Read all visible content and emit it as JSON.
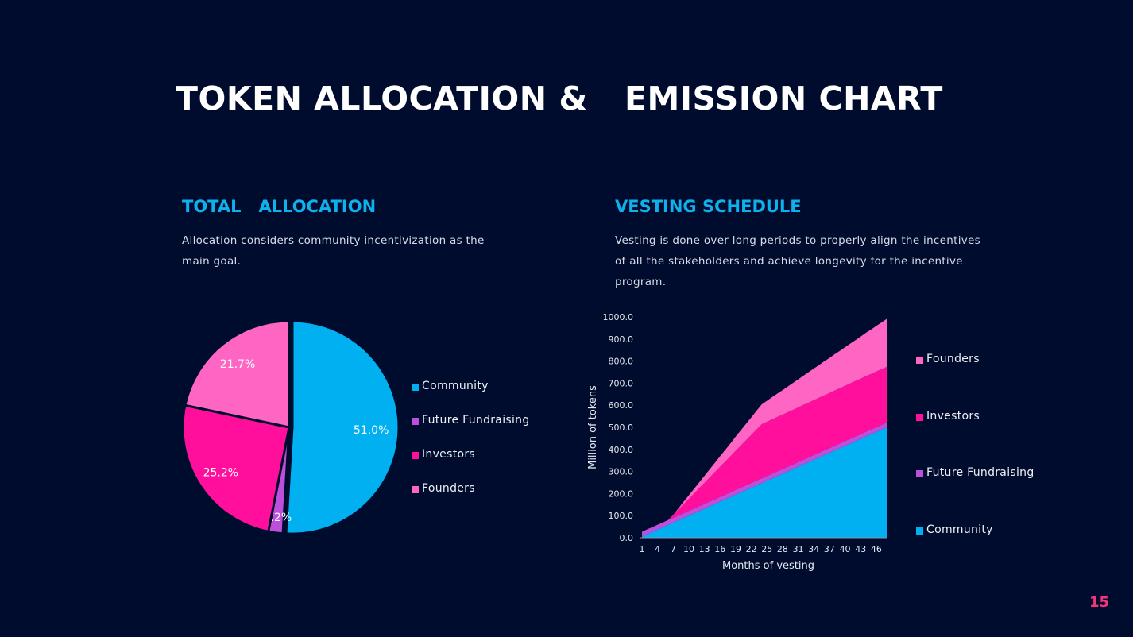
{
  "title_left": "TOKEN ALLOCATION &",
  "title_right": "EMISSION CHART",
  "left": {
    "heading": "TOTAL   ALLOCATION",
    "description": "Allocation considers community incentivization as the main goal."
  },
  "right": {
    "heading": "VESTING SCHEDULE",
    "description": "Vesting is done over long periods to properly align the incentives of all the stakeholders and achieve longevity for the incentive program."
  },
  "page_number": "15",
  "colors": {
    "background": "#000c2e",
    "community": "#00b0f0",
    "future_fundraising": "#bd4fdc",
    "investors": "#ff0f9b",
    "founders": "#ff66c4",
    "heading": "#0fb0ee",
    "page_number": "#f5337a"
  },
  "chart_data": [
    {
      "type": "pie",
      "start": "top",
      "direction": "clockwise",
      "categories": [
        "Community",
        "Future Fundraising",
        "Investors",
        "Founders"
      ],
      "values": [
        51.0,
        2.2,
        25.2,
        21.7
      ],
      "labels": [
        "51.0%",
        "2.2%",
        "25.2%",
        "21.7%"
      ],
      "legend": [
        "Community",
        "Future Fundraising",
        "Investors",
        "Founders"
      ],
      "legend_placement": "right"
    },
    {
      "type": "area",
      "stacked": true,
      "xlabel": "Months of vesting",
      "ylabel": "Million of tokens",
      "ylim": [
        0,
        1000
      ],
      "yticks": [
        "0.0",
        "100.0",
        "200.0",
        "300.0",
        "400.0",
        "500.0",
        "600.0",
        "700.0",
        "800.0",
        "900.0",
        "1000.0"
      ],
      "xticks": [
        "1",
        "4",
        "7",
        "10",
        "13",
        "16",
        "19",
        "22",
        "25",
        "28",
        "31",
        "34",
        "37",
        "40",
        "43",
        "46"
      ],
      "x": [
        1,
        2,
        3,
        4,
        5,
        6,
        7,
        8,
        9,
        10,
        11,
        12,
        13,
        14,
        15,
        16,
        17,
        18,
        19,
        20,
        21,
        22,
        23,
        24,
        25,
        26,
        27,
        28,
        29,
        30,
        31,
        32,
        33,
        34,
        35,
        36,
        37,
        38,
        39,
        40,
        41,
        42,
        43,
        44,
        45,
        46,
        47,
        48
      ],
      "grid": false,
      "legend": [
        "Founders",
        "Investors",
        "Future Fundraising",
        "Community"
      ],
      "legend_placement": "right",
      "series": [
        {
          "name": "Community",
          "values": [
            5,
            16,
            26,
            37,
            47,
            58,
            68,
            79,
            89,
            100,
            110,
            121,
            131,
            142,
            152,
            163,
            173,
            184,
            195,
            205,
            216,
            226,
            237,
            247,
            258,
            268,
            279,
            289,
            300,
            310,
            321,
            332,
            342,
            353,
            363,
            374,
            384,
            395,
            405,
            416,
            426,
            437,
            447,
            458,
            468,
            479,
            489,
            500
          ]
        },
        {
          "name": "Future Fundraising",
          "values": [
            22,
            22,
            22,
            22,
            22,
            22,
            22,
            22,
            22,
            22,
            22,
            22,
            22,
            22,
            22,
            22,
            22,
            22,
            22,
            22,
            22,
            22,
            22,
            22,
            22,
            22,
            22,
            22,
            22,
            22,
            22,
            22,
            22,
            22,
            22,
            22,
            22,
            22,
            22,
            22,
            22,
            22,
            22,
            22,
            22,
            22,
            22,
            22
          ]
        },
        {
          "name": "Investors",
          "values": [
            0,
            0,
            0,
            0,
            0,
            0,
            14,
            27,
            41,
            54,
            68,
            82,
            95,
            109,
            123,
            136,
            150,
            163,
            177,
            191,
            204,
            218,
            231,
            245,
            245,
            246,
            246,
            246,
            247,
            247,
            247,
            248,
            248,
            248,
            249,
            249,
            249,
            250,
            250,
            250,
            251,
            251,
            251,
            252,
            252,
            252,
            252,
            252
          ]
        },
        {
          "name": "Founders",
          "values": [
            0,
            0,
            0,
            0,
            0,
            0,
            0,
            5,
            11,
            16,
            21,
            26,
            32,
            37,
            42,
            48,
            53,
            58,
            64,
            69,
            74,
            79,
            85,
            90,
            95,
            101,
            106,
            111,
            116,
            122,
            127,
            132,
            138,
            143,
            148,
            154,
            159,
            164,
            169,
            175,
            180,
            185,
            191,
            196,
            201,
            206,
            212,
            217
          ]
        }
      ]
    }
  ]
}
